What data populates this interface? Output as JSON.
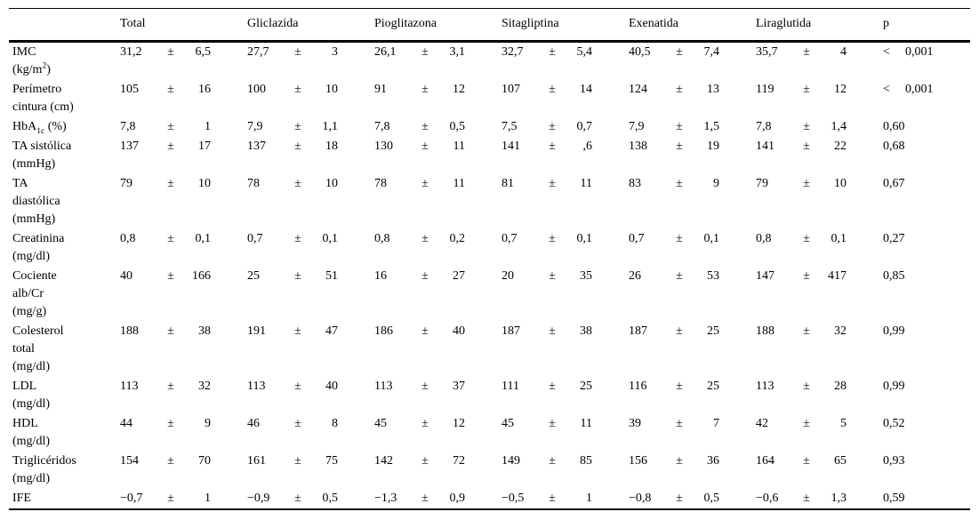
{
  "colors": {
    "text": "#000000",
    "background": "#ffffff",
    "rule": "#000000"
  },
  "table": {
    "plus_minus": "±",
    "columns": [
      "",
      "Total",
      "Gliclazida",
      "Pioglitazona",
      "Sitagliptina",
      "Exenatida",
      "Liraglutida",
      "p"
    ],
    "rows": [
      {
        "label": [
          {
            "t": "IMC"
          },
          {
            "t": "(kg/m",
            "br": true
          },
          {
            "t": "2",
            "sup": true
          },
          {
            "t": ")"
          }
        ],
        "cells": [
          {
            "m": "31,2",
            "s": "6,5"
          },
          {
            "m": "27,7",
            "s": "3"
          },
          {
            "m": "26,1",
            "s": "3,1"
          },
          {
            "m": "32,7",
            "s": "5,4"
          },
          {
            "m": "40,5",
            "s": "7,4"
          },
          {
            "m": "35,7",
            "s": "4"
          }
        ],
        "p": {
          "sign": "<",
          "value": "0,001"
        }
      },
      {
        "label": [
          {
            "t": "Perímetro"
          },
          {
            "t": "cintura (cm)",
            "br": true
          }
        ],
        "cells": [
          {
            "m": "105",
            "s": "16"
          },
          {
            "m": "100",
            "s": "10"
          },
          {
            "m": "91",
            "s": "12"
          },
          {
            "m": "107",
            "s": "14"
          },
          {
            "m": "124",
            "s": "13"
          },
          {
            "m": "119",
            "s": "12"
          }
        ],
        "p": {
          "sign": "<",
          "value": "0,001"
        }
      },
      {
        "label": [
          {
            "t": "HbA"
          },
          {
            "t": "1c",
            "sub": true
          },
          {
            "t": " (%)"
          }
        ],
        "cells": [
          {
            "m": "7,8",
            "s": "1"
          },
          {
            "m": "7,9",
            "s": "1,1"
          },
          {
            "m": "7,8",
            "s": "0,5"
          },
          {
            "m": "7,5",
            "s": "0,7"
          },
          {
            "m": "7,9",
            "s": "1,5"
          },
          {
            "m": "7,8",
            "s": "1,4"
          }
        ],
        "p": {
          "sign": "",
          "value": "0,60"
        }
      },
      {
        "label": [
          {
            "t": "TA sistólica"
          },
          {
            "t": "(mmHg)",
            "br": true
          }
        ],
        "cells": [
          {
            "m": "137",
            "s": "17"
          },
          {
            "m": "137",
            "s": "18"
          },
          {
            "m": "130",
            "s": "11"
          },
          {
            "m": "141",
            "s": ",6"
          },
          {
            "m": "138",
            "s": "19"
          },
          {
            "m": "141",
            "s": "22"
          }
        ],
        "p": {
          "sign": "",
          "value": "0,68"
        }
      },
      {
        "label": [
          {
            "t": "TA"
          },
          {
            "t": "diastólica",
            "br": true
          },
          {
            "t": "(mmHg)",
            "br": true
          }
        ],
        "cells": [
          {
            "m": "79",
            "s": "10"
          },
          {
            "m": "78",
            "s": "10"
          },
          {
            "m": "78",
            "s": "11"
          },
          {
            "m": "81",
            "s": "11"
          },
          {
            "m": "83",
            "s": "9"
          },
          {
            "m": "79",
            "s": "10"
          }
        ],
        "p": {
          "sign": "",
          "value": "0,67"
        }
      },
      {
        "label": [
          {
            "t": "Creatinina"
          },
          {
            "t": "(mg/dl)",
            "br": true
          }
        ],
        "cells": [
          {
            "m": "0,8",
            "s": "0,1"
          },
          {
            "m": "0,7",
            "s": "0,1"
          },
          {
            "m": "0,8",
            "s": "0,2"
          },
          {
            "m": "0,7",
            "s": "0,1"
          },
          {
            "m": "0,7",
            "s": "0,1"
          },
          {
            "m": "0,8",
            "s": "0,1"
          }
        ],
        "p": {
          "sign": "",
          "value": "0,27"
        }
      },
      {
        "label": [
          {
            "t": "Cociente"
          },
          {
            "t": "alb/Cr",
            "br": true
          },
          {
            "t": "(mg/g)",
            "br": true
          }
        ],
        "cells": [
          {
            "m": "40",
            "s": "166"
          },
          {
            "m": "25",
            "s": "51"
          },
          {
            "m": "16",
            "s": "27"
          },
          {
            "m": "20",
            "s": "35"
          },
          {
            "m": "26",
            "s": "53"
          },
          {
            "m": "147",
            "s": "417"
          }
        ],
        "p": {
          "sign": "",
          "value": "0,85"
        }
      },
      {
        "label": [
          {
            "t": "Colesterol"
          },
          {
            "t": "total",
            "br": true
          },
          {
            "t": "(mg/dl)",
            "br": true
          }
        ],
        "cells": [
          {
            "m": "188",
            "s": "38"
          },
          {
            "m": "191",
            "s": "47"
          },
          {
            "m": "186",
            "s": "40"
          },
          {
            "m": "187",
            "s": "38"
          },
          {
            "m": "187",
            "s": "25"
          },
          {
            "m": "188",
            "s": "32"
          }
        ],
        "p": {
          "sign": "",
          "value": "0,99"
        }
      },
      {
        "label": [
          {
            "t": "LDL"
          },
          {
            "t": "(mg/dl)",
            "br": true
          }
        ],
        "cells": [
          {
            "m": "113",
            "s": "32"
          },
          {
            "m": "113",
            "s": "40"
          },
          {
            "m": "113",
            "s": "37"
          },
          {
            "m": "111",
            "s": "25"
          },
          {
            "m": "116",
            "s": "25"
          },
          {
            "m": "113",
            "s": "28"
          }
        ],
        "p": {
          "sign": "",
          "value": "0,99"
        }
      },
      {
        "label": [
          {
            "t": "HDL"
          },
          {
            "t": "(mg/dl)",
            "br": true
          }
        ],
        "cells": [
          {
            "m": "44",
            "s": "9"
          },
          {
            "m": "46",
            "s": "8"
          },
          {
            "m": "45",
            "s": "12"
          },
          {
            "m": "45",
            "s": "11"
          },
          {
            "m": "39",
            "s": "7"
          },
          {
            "m": "42",
            "s": "5"
          }
        ],
        "p": {
          "sign": "",
          "value": "0,52"
        }
      },
      {
        "label": [
          {
            "t": "Triglicéridos"
          },
          {
            "t": "(mg/dl)",
            "br": true
          }
        ],
        "cells": [
          {
            "m": "154",
            "s": "70"
          },
          {
            "m": "161",
            "s": "75"
          },
          {
            "m": "142",
            "s": "72"
          },
          {
            "m": "149",
            "s": "85"
          },
          {
            "m": "156",
            "s": "36"
          },
          {
            "m": "164",
            "s": "65"
          }
        ],
        "p": {
          "sign": "",
          "value": "0,93"
        }
      },
      {
        "label": [
          {
            "t": "IFE"
          }
        ],
        "cells": [
          {
            "m": "−0,7",
            "s": "1"
          },
          {
            "m": "−0,9",
            "s": "0,5"
          },
          {
            "m": "−1,3",
            "s": "0,9"
          },
          {
            "m": "−0,5",
            "s": "1"
          },
          {
            "m": "−0,8",
            "s": "0,5"
          },
          {
            "m": "−0,6",
            "s": "1,3"
          }
        ],
        "p": {
          "sign": "",
          "value": "0,59"
        }
      }
    ]
  }
}
